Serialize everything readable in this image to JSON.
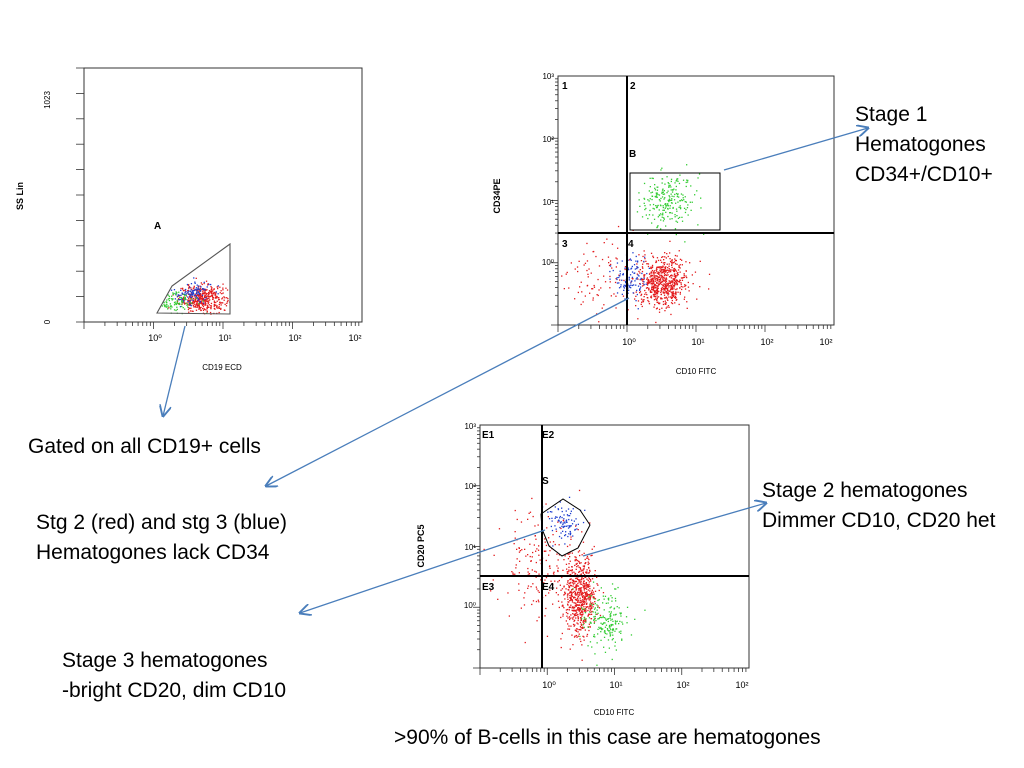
{
  "chart_data": [
    {
      "type": "scatter",
      "xlabel": "CD19 ECD",
      "ylabel": "SS Lin",
      "x_scale": "log",
      "x_range": [
        0.1,
        1000
      ],
      "x_ticks": [
        "10⁰",
        "10¹",
        "10²",
        "10²"
      ],
      "y_scale": "linear",
      "y_range": [
        0,
        1023
      ],
      "y_ticks": [
        "0",
        "1023"
      ],
      "gates": [
        {
          "label": "A",
          "shape": "polygon"
        }
      ],
      "populations": [
        {
          "color": "#e31a1c",
          "count": 420,
          "x_center": 5,
          "x_spread": 0.17,
          "y_center": 95,
          "y_spread": 28
        },
        {
          "color": "#1f3fcf",
          "count": 110,
          "x_center": 3.5,
          "x_spread": 0.14,
          "y_center": 120,
          "y_spread": 25
        },
        {
          "color": "#33cc33",
          "count": 90,
          "x_center": 1.8,
          "x_spread": 0.17,
          "y_center": 90,
          "y_spread": 25
        }
      ]
    },
    {
      "type": "scatter",
      "xlabel": "CD10 FITC",
      "ylabel": "CD34PE",
      "x_scale": "log",
      "x_range": [
        0.1,
        1000
      ],
      "x_ticks": [
        "10⁰",
        "10¹",
        "10²",
        "10²"
      ],
      "y_scale": "log",
      "y_range": [
        0.1,
        1000
      ],
      "y_ticks": [
        "10⁰",
        "10¹",
        "10²",
        "10³"
      ],
      "quadrants": [
        "1",
        "2",
        "3",
        "4"
      ],
      "quadrant_cut": {
        "x": 0.95,
        "y": 2.9
      },
      "gates": [
        {
          "label": "B",
          "shape": "rectangle",
          "x": [
            1.1,
            27
          ],
          "y": [
            3.2,
            28
          ]
        }
      ],
      "populations": [
        {
          "color": "#e31a1c",
          "count": 650,
          "x_center": 3.2,
          "x_spread": 0.18,
          "y_center": 0.5,
          "y_spread": 0.2
        },
        {
          "color": "#e31a1c",
          "count": 90,
          "x_center": 0.4,
          "x_spread": 0.3,
          "y_center": 0.6,
          "y_spread": 0.3
        },
        {
          "color": "#1f3fcf",
          "count": 110,
          "x_center": 1.1,
          "x_spread": 0.12,
          "y_center": 0.6,
          "y_spread": 0.18
        },
        {
          "color": "#33cc33",
          "count": 230,
          "x_center": 4,
          "x_spread": 0.2,
          "y_center": 10,
          "y_spread": 0.22
        }
      ]
    },
    {
      "type": "scatter",
      "xlabel": "CD10 FITC",
      "ylabel": "CD20 PC5",
      "x_scale": "log",
      "x_range": [
        0.1,
        1000
      ],
      "x_ticks": [
        "10⁰",
        "10¹",
        "10²",
        "10²"
      ],
      "y_scale": "log",
      "y_range": [
        0.1,
        1000
      ],
      "y_ticks": [
        "10⁰",
        "10¹",
        "10²",
        "10³"
      ],
      "quadrants": [
        "E1",
        "E2",
        "E3",
        "E4"
      ],
      "quadrant_cut": {
        "x": 0.85,
        "y": 3.2
      },
      "gates": [
        {
          "label": "S",
          "shape": "polygon"
        }
      ],
      "populations": [
        {
          "color": "#e31a1c",
          "count": 620,
          "x_center": 3,
          "x_spread": 0.12,
          "y_center": 1.6,
          "y_spread": 0.33
        },
        {
          "color": "#e31a1c",
          "count": 180,
          "x_center": 0.7,
          "x_spread": 0.28,
          "y_center": 5,
          "y_spread": 0.45
        },
        {
          "color": "#1f3fcf",
          "count": 90,
          "x_center": 1.8,
          "x_spread": 0.12,
          "y_center": 25,
          "y_spread": 0.15
        },
        {
          "color": "#33cc33",
          "count": 190,
          "x_center": 7,
          "x_spread": 0.18,
          "y_center": 0.6,
          "y_spread": 0.25
        }
      ]
    }
  ],
  "annotations": {
    "stage1": {
      "line1": "Stage 1",
      "line2": "Hematogones",
      "line3": "CD34+/CD10+"
    },
    "gated": {
      "text": "Gated on all CD19+ cells"
    },
    "stg23": {
      "line1": "Stg 2 (red) and stg 3 (blue)",
      "line2": "Hematogones lack CD34"
    },
    "stage2": {
      "line1": "Stage 2 hematogones",
      "line2": "Dimmer CD10, CD20 het"
    },
    "stage3": {
      "line1": "Stage 3 hematogones",
      "line2": "-bright CD20, dim CD10"
    },
    "footer": {
      "text": ">90% of B-cells in this case are hematogones"
    }
  },
  "colors": {
    "red": "#e31a1c",
    "blue": "#1f3fcf",
    "green": "#33cc33",
    "arrow": "#4a7ebb"
  }
}
